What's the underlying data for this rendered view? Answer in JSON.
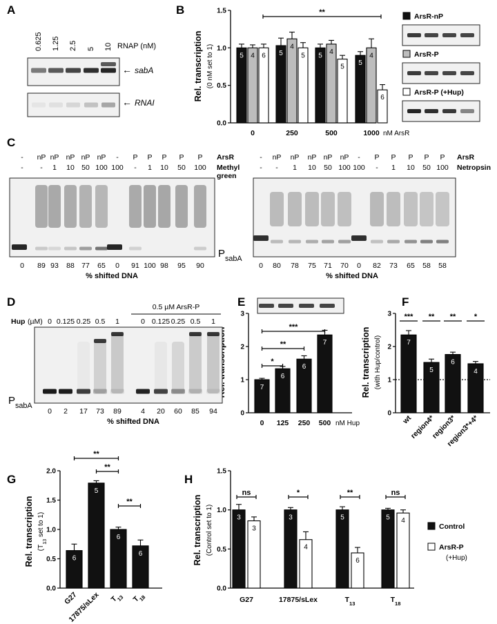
{
  "colors": {
    "bar_dark": "#111111",
    "bar_grey": "#bdbdbd",
    "bar_white": "#ffffff",
    "gel_bg": "#f1f1f1",
    "band": "#1a1a1a"
  },
  "panels": {
    "A": {
      "letter": "A",
      "lane_labels": [
        "0.625",
        "1.25",
        "2.5",
        "5",
        "10"
      ],
      "axis_label": "RNAP (nM)",
      "band_labels": [
        "sabA",
        "RNAI"
      ]
    },
    "C": {
      "letter": "C",
      "left": {
        "arsr_row": [
          "-",
          "nP",
          "nP",
          "nP",
          "nP",
          "nP",
          "-",
          "P",
          "P",
          "P",
          "P",
          "P"
        ],
        "conc_row": [
          "-",
          "-",
          "1",
          "10",
          "50",
          "100",
          "100",
          "-",
          "1",
          "10",
          "50",
          "100"
        ],
        "arsr_label": "ArsR",
        "reagent_label": "Methyl",
        "reagent_label2": "green",
        "shifted": [
          "0",
          "89",
          "93",
          "88",
          "77",
          "65",
          "0",
          "91",
          "100",
          "98",
          "95",
          "90"
        ]
      },
      "right": {
        "arsr_row": [
          "-",
          "nP",
          "nP",
          "nP",
          "nP",
          "nP",
          "-",
          "P",
          "P",
          "P",
          "P",
          "P"
        ],
        "conc_row": [
          "-",
          "-",
          "1",
          "10",
          "50",
          "100",
          "100",
          "-",
          "1",
          "10",
          "50",
          "100"
        ],
        "arsr_label": "ArsR",
        "reagent_label": "Netropsin",
        "shifted": [
          "0",
          "80",
          "78",
          "75",
          "71",
          "70",
          "0",
          "82",
          "73",
          "65",
          "58",
          "58"
        ]
      },
      "promoter_label": "P",
      "promoter_sub": "sabA",
      "xlabel": "% shifted DNA"
    },
    "D": {
      "letter": "D",
      "hup_label": "Hup",
      "hup_unit": "(µM)",
      "hup_values": [
        "0",
        "0.125",
        "0.25",
        "0.5",
        "1",
        "0",
        "0.125",
        "0.25",
        "0.5",
        "1"
      ],
      "bracket_label": "0.5 µM ArsR-P",
      "shifted": [
        "0",
        "2",
        "17",
        "73",
        "89",
        "4",
        "20",
        "60",
        "85",
        "94"
      ],
      "promoter_label": "P",
      "promoter_sub": "sabA",
      "xlabel": "% shifted DNA"
    }
  },
  "chart_data": [
    {
      "panel": "B",
      "type": "bar",
      "ylabel": "Rel. transcription",
      "ylabel2": "(0 nM set to 1)",
      "ylim": [
        0,
        1.5
      ],
      "yticks": [
        "0.0",
        "0.5",
        "1.0",
        "1.5"
      ],
      "categories": [
        "0",
        "250",
        "500",
        "1000"
      ],
      "xunit": "nM ArsR",
      "series": [
        {
          "name": "ArsR-nP",
          "values": [
            1.0,
            1.03,
            1.0,
            0.9
          ],
          "errors": [
            0.05,
            0.1,
            0.05,
            0.05
          ],
          "n": [
            "5",
            "5",
            "5",
            "5"
          ]
        },
        {
          "name": "ArsR-P",
          "values": [
            1.0,
            1.12,
            1.05,
            1.0
          ],
          "errors": [
            0.04,
            0.09,
            0.05,
            0.12
          ],
          "n": [
            "4",
            "4",
            "4",
            "4"
          ]
        },
        {
          "name": "ArsR-P (+Hup)",
          "values": [
            1.0,
            1.0,
            0.85,
            0.44
          ],
          "errors": [
            0.05,
            0.07,
            0.05,
            0.07
          ],
          "n": [
            "6",
            "5",
            "5",
            "6"
          ]
        }
      ],
      "significance": [
        {
          "label": "**",
          "from": "0",
          "to": "1000"
        }
      ]
    },
    {
      "panel": "E",
      "type": "bar",
      "ylabel": "Rel. transcription",
      "ylim": [
        0,
        3
      ],
      "yticks": [
        "0",
        "1",
        "2",
        "3"
      ],
      "categories": [
        "0",
        "125",
        "250",
        "500"
      ],
      "xunit": "nM Hup",
      "values": [
        1.0,
        1.33,
        1.62,
        2.35
      ],
      "errors": [
        0.04,
        0.07,
        0.1,
        0.14
      ],
      "n": [
        "7",
        "6",
        "6",
        "7"
      ],
      "significance": [
        {
          "label": "*",
          "to": "125"
        },
        {
          "label": "**",
          "to": "250"
        },
        {
          "label": "***",
          "to": "500"
        }
      ]
    },
    {
      "panel": "F",
      "type": "bar",
      "ylabel": "Rel. transcription",
      "ylabel2": "(with Hup/control)",
      "ylim": [
        0,
        3
      ],
      "yticks": [
        "0",
        "1",
        "2",
        "3"
      ],
      "categories": [
        "wt",
        "region4*",
        "region3*",
        "region3*+4*"
      ],
      "values": [
        2.35,
        1.52,
        1.76,
        1.48
      ],
      "errors": [
        0.13,
        0.1,
        0.07,
        0.07
      ],
      "n": [
        "7",
        "5",
        "6",
        "4"
      ],
      "significance": [
        "***",
        "**",
        "**",
        "*"
      ],
      "reference_line": 1
    },
    {
      "panel": "G",
      "type": "bar",
      "ylabel": "Rel. transcription",
      "ylabel2_main": "(T",
      "ylabel2_sub": "13",
      "ylabel2_end": " set to 1)",
      "ylim": [
        0,
        2.0
      ],
      "yticks": [
        "0.0",
        "0.5",
        "1.0",
        "1.5",
        "2.0"
      ],
      "categories": [
        "G27",
        "17875/sLex",
        "T13",
        "T18"
      ],
      "values": [
        0.64,
        1.79,
        1.0,
        0.72
      ],
      "errors": [
        0.11,
        0.04,
        0.04,
        0.1
      ],
      "n": [
        "6",
        "5",
        "6",
        "6"
      ],
      "significance": [
        {
          "label": "**",
          "from": "G27",
          "to": "T13"
        },
        {
          "label": "**",
          "from": "17875/sLex",
          "to": "T13"
        },
        {
          "label": "**",
          "from": "T13",
          "to": "T18"
        }
      ]
    },
    {
      "panel": "H",
      "type": "bar",
      "ylabel": "Rel. transcription",
      "ylabel2": "(Control set to 1)",
      "ylim": [
        0,
        1.5
      ],
      "yticks": [
        "0.0",
        "0.5",
        "1.0",
        "1.5"
      ],
      "categories": [
        "G27",
        "17875/sLex",
        "T13",
        "T18"
      ],
      "series": [
        {
          "name": "Control",
          "values": [
            1.0,
            1.0,
            1.0,
            1.0
          ],
          "errors": [
            0.07,
            0.03,
            0.04,
            0.02
          ],
          "n": [
            "3",
            "3",
            "5",
            "5"
          ]
        },
        {
          "name": "ArsR-P",
          "values": [
            0.86,
            0.62,
            0.45,
            0.96
          ],
          "errors": [
            0.05,
            0.1,
            0.07,
            0.04
          ],
          "n": [
            "3",
            "4",
            "6",
            "4"
          ]
        }
      ],
      "legend_extra": "(+Hup)",
      "significance": [
        "ns",
        "*",
        "**",
        "ns"
      ]
    }
  ]
}
